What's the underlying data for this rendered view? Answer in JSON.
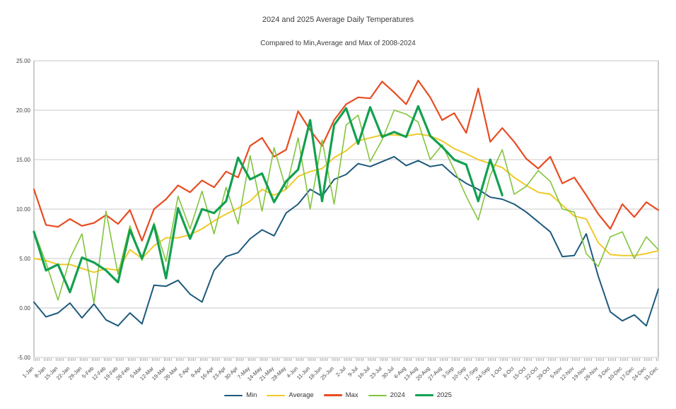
{
  "header": {
    "title": "2024 and 2025 Average Daily Temperatures",
    "subtitle": "Compared to Min,Average and Max of 2008-2024"
  },
  "chart_data": {
    "type": "line",
    "title": "2024 and 2025 Average Daily Temperatures",
    "subtitle": "Compared to Min,Average and Max of 2008-2024",
    "ylabel": "",
    "xlabel": "",
    "grid": "horizontal",
    "legend_position": "bottom",
    "y_axis": {
      "min": -5,
      "max": 25,
      "tick_values": [
        25,
        20,
        15,
        10,
        5,
        0,
        -5
      ],
      "tick_labels": [
        "25.00",
        "20.00",
        "15.00",
        "10.00",
        "5.00",
        "0.00",
        "-5.00"
      ]
    },
    "x_axis": {
      "days_in_year": 365,
      "minor_ticks": "daily",
      "tick_days": [
        1,
        8,
        15,
        22,
        29,
        36,
        43,
        50,
        57,
        64,
        71,
        78,
        85,
        92,
        99,
        106,
        113,
        120,
        127,
        134,
        141,
        148,
        155,
        162,
        169,
        176,
        183,
        190,
        197,
        204,
        211,
        218,
        225,
        232,
        239,
        246,
        253,
        260,
        267,
        274,
        281,
        288,
        295,
        302,
        309,
        316,
        323,
        330,
        337,
        344,
        351,
        358,
        365
      ],
      "tick_labels": [
        "1-Jan",
        "8-Jan",
        "15-Jan",
        "22-Jan",
        "29-Jan",
        "5-Feb",
        "12-Feb",
        "19-Feb",
        "26-Feb",
        "5-Mar",
        "12-Mar",
        "19-Mar",
        "26-Mar",
        "2-Apr",
        "9-Apr",
        "16-Apr",
        "23-Apr",
        "30-Apr",
        "7-May",
        "14-May",
        "21-May",
        "28-May",
        "4-Jun",
        "11-Jun",
        "18-Jun",
        "25-Jun",
        "2-Jul",
        "9-Jul",
        "16-Jul",
        "23-Jul",
        "30-Jul",
        "6-Aug",
        "13-Aug",
        "20-Aug",
        "27-Aug",
        "3-Sep",
        "10-Sep",
        "17-Sep",
        "24-Sep",
        "1-Oct",
        "8-Oct",
        "15-Oct",
        "22-Oct",
        "29-Oct",
        "5-Nov",
        "12-Nov",
        "19-Nov",
        "26-Nov",
        "3-Dec",
        "10-Dec",
        "17-Dec",
        "24-Dec",
        "31-Dec"
      ]
    },
    "series": [
      {
        "name": "Min",
        "color": "#1d5a7c",
        "width": 2,
        "values": [
          0.6,
          -0.9,
          -0.5,
          0.5,
          -1.0,
          0.4,
          -1.2,
          -1.8,
          -0.5,
          -1.6,
          2.3,
          2.2,
          2.8,
          1.4,
          0.6,
          3.8,
          5.2,
          5.6,
          7.0,
          7.9,
          7.3,
          9.6,
          10.5,
          12.0,
          11.3,
          13.0,
          13.5,
          14.6,
          14.3,
          14.8,
          15.3,
          14.4,
          14.9,
          14.3,
          14.5,
          13.4,
          12.6,
          12.0,
          11.2,
          11.0,
          10.5,
          9.7,
          8.7,
          7.7,
          5.2,
          5.3,
          7.5,
          3.2,
          -0.4,
          -1.3,
          -0.7,
          -1.8,
          1.9
        ]
      },
      {
        "name": "Average",
        "color": "#f0c929",
        "width": 2,
        "values": [
          5.0,
          4.8,
          4.4,
          4.4,
          4.0,
          3.6,
          4.0,
          3.8,
          5.9,
          5.0,
          6.3,
          7.1,
          7.1,
          7.4,
          8.0,
          8.8,
          9.5,
          10.1,
          10.8,
          12.0,
          11.4,
          12.0,
          13.3,
          13.8,
          14.1,
          15.2,
          15.9,
          16.9,
          17.2,
          17.5,
          17.5,
          17.4,
          17.6,
          17.4,
          16.9,
          16.1,
          15.6,
          15.0,
          14.6,
          14.2,
          13.2,
          12.4,
          11.7,
          11.5,
          10.4,
          9.3,
          9.0,
          6.6,
          5.4,
          5.3,
          5.3,
          5.5,
          5.8
        ]
      },
      {
        "name": "Max",
        "color": "#e84c22",
        "width": 2.2,
        "values": [
          12.0,
          8.4,
          8.2,
          9.0,
          8.3,
          8.6,
          9.4,
          8.5,
          9.9,
          6.8,
          10.0,
          11.0,
          12.4,
          11.7,
          12.9,
          12.2,
          13.8,
          13.2,
          16.4,
          17.2,
          15.3,
          16.0,
          19.9,
          18.0,
          16.4,
          19.0,
          20.6,
          21.3,
          21.2,
          22.9,
          21.8,
          20.6,
          23.0,
          21.3,
          19.0,
          19.7,
          17.7,
          22.2,
          16.8,
          18.2,
          16.8,
          15.1,
          14.1,
          15.3,
          12.6,
          13.2,
          11.4,
          9.5,
          8.0,
          10.5,
          9.2,
          10.7,
          9.9
        ]
      },
      {
        "name": "2024",
        "color": "#83c43d",
        "width": 1.6,
        "values": [
          7.8,
          4.6,
          0.8,
          5.0,
          7.5,
          0.5,
          9.8,
          3.4,
          8.3,
          4.8,
          8.6,
          4.7,
          11.3,
          8.0,
          11.8,
          7.5,
          12.2,
          8.5,
          15.4,
          9.8,
          16.2,
          12.0,
          17.2,
          10.0,
          17.0,
          10.5,
          18.5,
          19.5,
          14.8,
          17.0,
          20.0,
          19.6,
          18.8,
          15.0,
          16.5,
          14.0,
          11.3,
          8.9,
          13.4,
          16.0,
          11.5,
          12.3,
          13.9,
          12.8,
          10.0,
          9.7,
          5.5,
          4.2,
          7.2,
          7.7,
          5.0,
          7.2,
          5.9
        ]
      },
      {
        "name": "2025",
        "color": "#12a050",
        "width": 3.2,
        "values": [
          7.7,
          3.8,
          4.4,
          1.6,
          5.1,
          4.6,
          3.8,
          2.6,
          7.9,
          5.0,
          8.4,
          3.0,
          10.1,
          7.0,
          10.0,
          9.6,
          10.8,
          15.2,
          13.0,
          13.6,
          10.7,
          12.8,
          14.0,
          19.0,
          10.8,
          18.5,
          20.2,
          16.6,
          20.3,
          17.3,
          17.8,
          17.3,
          20.4,
          17.4,
          16.3,
          15.0,
          14.5,
          10.8,
          15.0,
          11.4,
          null,
          null,
          null,
          null,
          null,
          null,
          null,
          null,
          null,
          null,
          null,
          null,
          null
        ]
      }
    ]
  }
}
